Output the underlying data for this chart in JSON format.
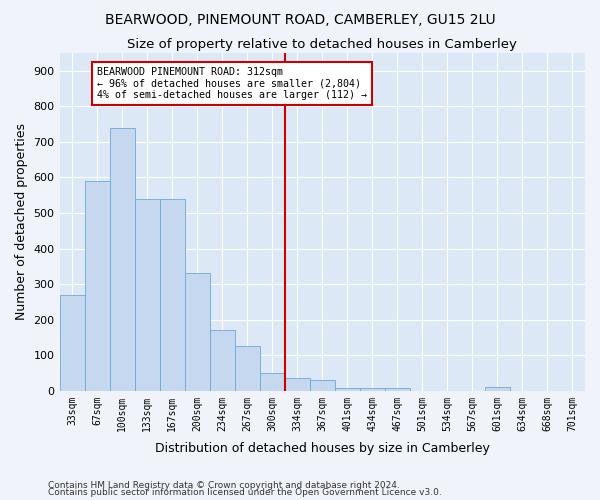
{
  "title": "BEARWOOD, PINEMOUNT ROAD, CAMBERLEY, GU15 2LU",
  "subtitle": "Size of property relative to detached houses in Camberley",
  "xlabel": "Distribution of detached houses by size in Camberley",
  "ylabel": "Number of detached properties",
  "footnote1": "Contains HM Land Registry data © Crown copyright and database right 2024.",
  "footnote2": "Contains public sector information licensed under the Open Government Licence v3.0.",
  "bin_labels": [
    "33sqm",
    "67sqm",
    "100sqm",
    "133sqm",
    "167sqm",
    "200sqm",
    "234sqm",
    "267sqm",
    "300sqm",
    "334sqm",
    "367sqm",
    "401sqm",
    "434sqm",
    "467sqm",
    "501sqm",
    "534sqm",
    "567sqm",
    "601sqm",
    "634sqm",
    "668sqm",
    "701sqm"
  ],
  "bar_values": [
    270,
    590,
    740,
    540,
    540,
    330,
    170,
    125,
    50,
    35,
    30,
    8,
    8,
    8,
    0,
    0,
    0,
    10,
    0,
    0,
    0
  ],
  "bar_color": "#c5d8f0",
  "bar_edge_color": "#6aaad4",
  "property_line_x": 8.5,
  "property_line_color": "#cc0000",
  "annotation_text": "BEARWOOD PINEMOUNT ROAD: 312sqm\n← 96% of detached houses are smaller (2,804)\n4% of semi-detached houses are larger (112) →",
  "annotation_box_color": "#ffffff",
  "annotation_box_edge_color": "#cc0000",
  "ylim": [
    0,
    950
  ],
  "yticks": [
    0,
    100,
    200,
    300,
    400,
    500,
    600,
    700,
    800,
    900
  ],
  "background_color": "#dce8f5",
  "figure_background": "#f0f4fa",
  "grid_color": "#ffffff",
  "title_fontsize": 10,
  "subtitle_fontsize": 9.5,
  "label_fontsize": 9,
  "tick_fontsize": 8,
  "footnote_fontsize": 6.5
}
